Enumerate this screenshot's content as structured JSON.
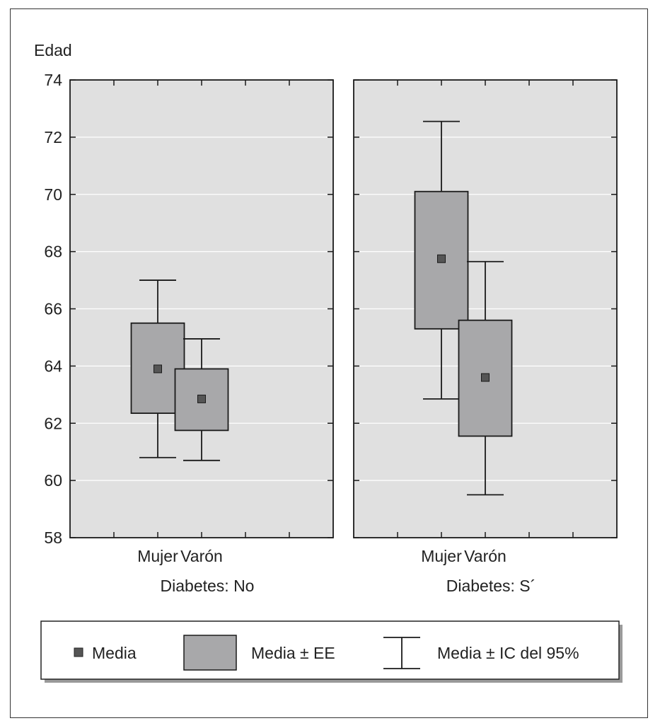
{
  "chart_data": {
    "type": "box",
    "ylabel": "Edad",
    "ylim": [
      58,
      74
    ],
    "yticks": [
      58,
      60,
      62,
      64,
      66,
      68,
      70,
      72,
      74
    ],
    "grid": true,
    "panels": [
      {
        "label": "Diabetes: No",
        "categories": [
          "Mujer",
          "Varón"
        ],
        "groups": [
          {
            "name": "Mujer",
            "mean": 63.9,
            "se_low": 62.35,
            "se_high": 65.5,
            "ci_low": 60.8,
            "ci_high": 67.0
          },
          {
            "name": "Varón",
            "mean": 62.85,
            "se_low": 61.75,
            "se_high": 63.9,
            "ci_low": 60.7,
            "ci_high": 64.95
          }
        ]
      },
      {
        "label": "Diabetes: S´",
        "categories": [
          "Mujer",
          "Varón"
        ],
        "groups": [
          {
            "name": "Mujer",
            "mean": 67.75,
            "se_low": 65.3,
            "se_high": 70.1,
            "ci_low": 62.85,
            "ci_high": 72.55
          },
          {
            "name": "Varón",
            "mean": 63.6,
            "se_low": 61.55,
            "se_high": 65.6,
            "ci_low": 59.5,
            "ci_high": 67.65
          }
        ]
      }
    ],
    "legend": {
      "placement": "bottom",
      "entries": [
        {
          "label": "Media",
          "symbol": "square"
        },
        {
          "label": "Media ± EE",
          "symbol": "box"
        },
        {
          "label": "Media ± IC del 95%",
          "symbol": "whisker"
        }
      ]
    },
    "colors": {
      "panel_bg": "#e0e0e0",
      "box_fill": "#a8a8aa",
      "mean_fill": "#555555",
      "line": "#1a1a1a",
      "grid": "#ffffff"
    }
  }
}
